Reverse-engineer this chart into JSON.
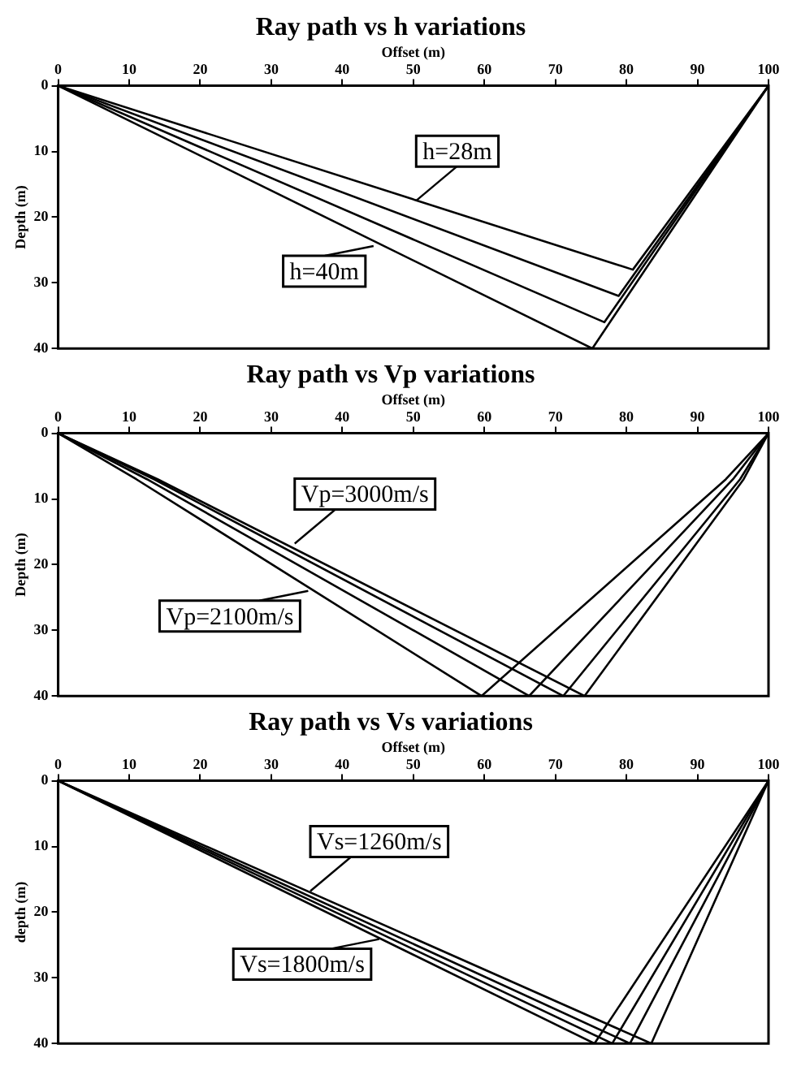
{
  "chart_data": [
    {
      "type": "line",
      "title": "Ray path vs h variations",
      "xlabel": "Offset (m)",
      "ylabel": "Depth (m)",
      "xlim": [
        0,
        100
      ],
      "xticks": [
        0,
        10,
        20,
        30,
        40,
        50,
        60,
        70,
        80,
        90,
        100
      ],
      "ylim": [
        40,
        0
      ],
      "yticks": [
        0,
        10,
        20,
        30,
        40
      ],
      "grid": false,
      "legend": false,
      "marker": "none",
      "line_style": "solid",
      "series": [
        {
          "color": "#000000",
          "x": [
            0,
            80.9,
            100
          ],
          "values": [
            0,
            28,
            0
          ]
        },
        {
          "color": "#000000",
          "x": [
            0,
            78.9,
            100
          ],
          "values": [
            0,
            32,
            0
          ]
        },
        {
          "color": "#000000",
          "x": [
            0,
            76.9,
            100
          ],
          "values": [
            0,
            36,
            0
          ]
        },
        {
          "color": "#000000",
          "x": [
            0,
            75.2,
            100
          ],
          "values": [
            0,
            40,
            0
          ]
        }
      ],
      "annotations": [
        {
          "text": "h=28m",
          "x": 50.4,
          "y": 17.5
        },
        {
          "text": "h=40m",
          "x": 44.4,
          "y": 24.4
        }
      ]
    },
    {
      "type": "line",
      "title": "Ray path vs Vp variations",
      "xlabel": "Offset (m)",
      "ylabel": "Depth (m)",
      "xlim": [
        0,
        100
      ],
      "xticks": [
        0,
        10,
        20,
        30,
        40,
        50,
        60,
        70,
        80,
        90,
        100
      ],
      "ylim": [
        40,
        0
      ],
      "yticks": [
        0,
        10,
        20,
        30,
        40
      ],
      "grid": false,
      "legend": false,
      "marker": "none",
      "line_style": "solid",
      "series": [
        {
          "color": "#000000",
          "x": [
            0,
            14,
            74.1,
            96.5,
            100
          ],
          "values": [
            0,
            7,
            40,
            7,
            0
          ]
        },
        {
          "color": "#000000",
          "x": [
            0,
            13.5,
            71.1,
            96,
            100
          ],
          "values": [
            0,
            7,
            40,
            7,
            0
          ]
        },
        {
          "color": "#000000",
          "x": [
            0,
            12.5,
            66.3,
            95,
            100
          ],
          "values": [
            0,
            7,
            40,
            7,
            0
          ]
        },
        {
          "color": "#000000",
          "x": [
            0,
            11,
            59.6,
            94,
            100
          ],
          "values": [
            0,
            7,
            40,
            7,
            0
          ]
        }
      ],
      "annotations": [
        {
          "text": "Vp=3000m/s",
          "x": 33.3,
          "y": 16.8
        },
        {
          "text": "Vp=2100m/s",
          "x": 35.2,
          "y": 24
        }
      ]
    },
    {
      "type": "line",
      "title": "Ray path vs Vs variations",
      "xlabel": "Offset (m)",
      "ylabel": "depth (m)",
      "xlim": [
        0,
        100
      ],
      "xticks": [
        0,
        10,
        20,
        30,
        40,
        50,
        60,
        70,
        80,
        90,
        100
      ],
      "ylim": [
        40,
        0
      ],
      "yticks": [
        0,
        10,
        20,
        30,
        40
      ],
      "grid": false,
      "legend": false,
      "marker": "none",
      "line_style": "solid",
      "series": [
        {
          "color": "#000000",
          "x": [
            0,
            75.5,
            100
          ],
          "values": [
            0,
            40,
            0
          ]
        },
        {
          "color": "#000000",
          "x": [
            0,
            78,
            100
          ],
          "values": [
            0,
            40,
            0
          ]
        },
        {
          "color": "#000000",
          "x": [
            0,
            80.5,
            100
          ],
          "values": [
            0,
            40,
            0
          ]
        },
        {
          "color": "#000000",
          "x": [
            0,
            83.5,
            100
          ],
          "values": [
            0,
            40,
            0
          ]
        }
      ],
      "annotations": [
        {
          "text": "Vs=1260m/s",
          "x": 35.5,
          "y": 16.8
        },
        {
          "text": "Vs=1800m/s",
          "x": 45.2,
          "y": 24.1
        }
      ]
    }
  ]
}
